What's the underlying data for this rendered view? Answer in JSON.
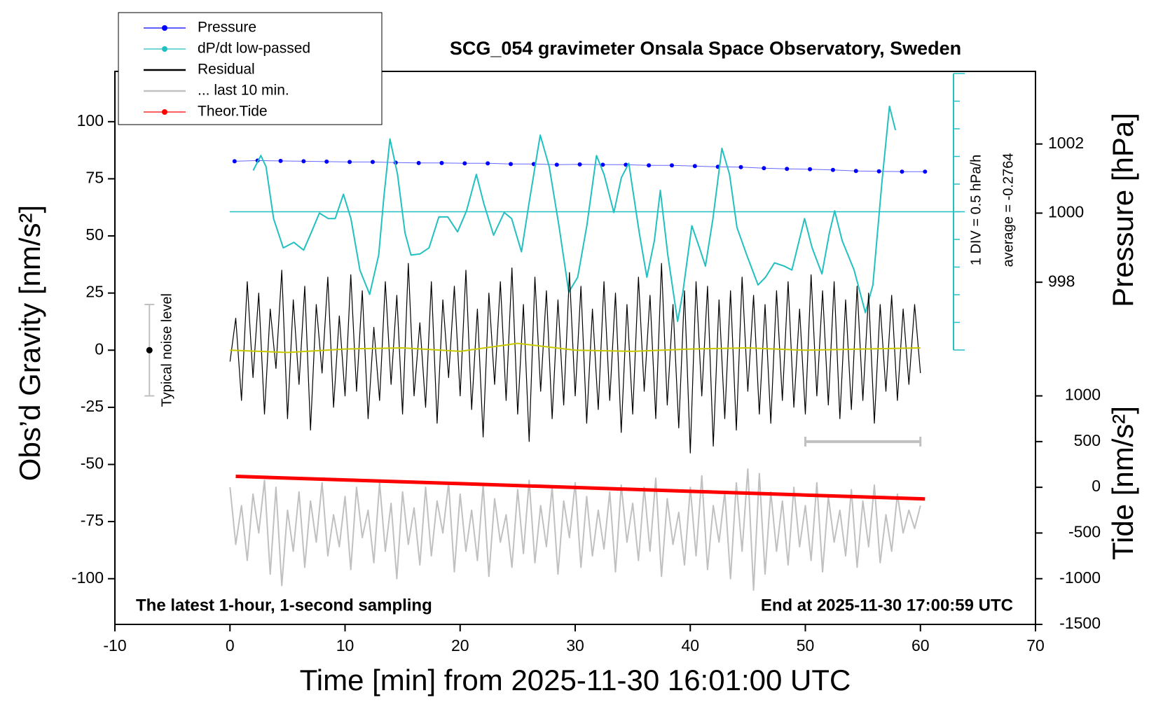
{
  "chart_data": {
    "type": "line",
    "title": "SCG_054 gravimeter Onsala Space Observatory, Sweden",
    "xlabel": "Time [min] from 2025-11-30 16:01:00 UTC",
    "ylabel": "Obs’d Gravity [nm/s²]",
    "y2label": "Pressure [hPa]",
    "y3label": "Tide [nm/s²]",
    "annotations": [
      "The latest 1-hour, 1-second sampling",
      "End at 2025-11-30 17:00:59 UTC"
    ],
    "dpdt_scale_label": "1 DIV = 0.5 hPa/h",
    "dpdt_average": -0.2764,
    "dpdt_average_label": "average = -0.2764",
    "xlim": [
      -10,
      70
    ],
    "xticks": [
      -10,
      0,
      10,
      20,
      30,
      40,
      50,
      60,
      70
    ],
    "ylim": [
      -120,
      122
    ],
    "yticks": [
      -100,
      -75,
      -50,
      -25,
      0,
      25,
      50,
      75,
      100
    ],
    "y2lim": [
      988.1,
      1004.1
    ],
    "y2ticks": [
      998,
      1000,
      1002
    ],
    "y3lim": [
      -1500,
      4550
    ],
    "y3ticks": [
      -1500,
      -1000,
      -500,
      0,
      500,
      1000
    ],
    "y4lim": [
      -2.7764,
      2.2236
    ],
    "y4ticks": [
      -2.7764,
      -2.2764,
      -1.7764,
      -1.2764,
      -0.7764,
      -0.2764,
      0.2236,
      0.7236,
      1.2236,
      1.7236,
      2.2236
    ],
    "noise_bar": {
      "x": -7,
      "center": 0,
      "half_range": 20,
      "label": "Typical noise level",
      "color": "#c0c0c0"
    },
    "last10_bar": {
      "x": [
        50,
        60
      ],
      "y": -40,
      "color": "#c0c0c0"
    },
    "x": [
      0,
      0.5,
      1,
      1.5,
      2,
      2.5,
      3,
      3.5,
      4,
      4.5,
      5,
      5.5,
      6,
      6.5,
      7,
      7.5,
      8,
      8.5,
      9,
      9.5,
      10,
      10.5,
      11,
      11.5,
      12,
      12.5,
      13,
      13.5,
      14,
      14.5,
      15,
      15.5,
      16,
      16.5,
      17,
      17.5,
      18,
      18.5,
      19,
      19.5,
      20,
      20.5,
      21,
      21.5,
      22,
      22.5,
      23,
      23.5,
      24,
      24.5,
      25,
      25.5,
      26,
      26.5,
      27,
      27.5,
      28,
      28.5,
      29,
      29.5,
      30,
      30.5,
      31,
      31.5,
      32,
      32.5,
      33,
      33.5,
      34,
      34.5,
      35,
      35.5,
      36,
      36.5,
      37,
      37.5,
      38,
      38.5,
      39,
      39.5,
      40,
      40.5,
      41,
      41.5,
      42,
      42.5,
      43,
      43.5,
      44,
      44.5,
      45,
      45.5,
      46,
      46.5,
      47,
      47.5,
      48,
      48.5,
      49,
      49.5,
      50,
      50.5,
      51,
      51.5,
      52,
      52.5,
      53,
      53.5,
      54,
      54.5,
      55,
      55.5,
      56,
      56.5,
      57,
      57.5,
      58,
      58.5,
      59,
      59.5,
      60
    ],
    "series": [
      {
        "name": "Pressure",
        "color": "#0000ff",
        "axis": "y2",
        "marker": true,
        "line_width": 1,
        "x": [
          0.4,
          2.4,
          4.4,
          6.4,
          8.4,
          10.4,
          12.4,
          14.4,
          16.4,
          18.4,
          20.4,
          22.4,
          24.4,
          26.4,
          28.4,
          30.4,
          32.4,
          34.4,
          36.4,
          38.4,
          40.4,
          42.4,
          44.4,
          46.4,
          48.4,
          50.4,
          52.4,
          54.4,
          56.4,
          58.4,
          60.4
        ],
        "values": [
          1001.5,
          1001.52,
          1001.51,
          1001.5,
          1001.49,
          1001.48,
          1001.48,
          1001.46,
          1001.45,
          1001.45,
          1001.44,
          1001.44,
          1001.42,
          1001.42,
          1001.4,
          1001.41,
          1001.4,
          1001.4,
          1001.38,
          1001.38,
          1001.36,
          1001.34,
          1001.33,
          1001.3,
          1001.28,
          1001.27,
          1001.25,
          1001.22,
          1001.21,
          1001.2,
          1001.2
        ]
      },
      {
        "name": "dP/dt low-passed",
        "color": "#22c0c0",
        "axis": "y4",
        "marker": true,
        "line_width": 2,
        "x": [
          2.02,
          2.68,
          3.13,
          3.79,
          4.63,
          5.55,
          6.4,
          7.05,
          7.77,
          8.55,
          9.14,
          9.86,
          10.51,
          11.29,
          12.14,
          12.92,
          13.38,
          13.9,
          14.56,
          15.21,
          15.73,
          16.51,
          17.3,
          18.15,
          18.93,
          19.78,
          20.56,
          21.41,
          22.06,
          22.91,
          23.83,
          24.48,
          25.33,
          25.98,
          26.96,
          27.74,
          28.59,
          29.44,
          30.22,
          31.01,
          31.85,
          32.51,
          33.36,
          34.01,
          34.66,
          35.57,
          36.23,
          36.88,
          37.4,
          38.05,
          38.9,
          39.36,
          40.14,
          40.8,
          41.32,
          41.97,
          42.75,
          43.41,
          44.06,
          44.91,
          45.89,
          46.54,
          47.32,
          48.17,
          48.83,
          49.93,
          50.59,
          51.44,
          52.09,
          52.55,
          53.2,
          54.24,
          55.22,
          55.87,
          56.66,
          57.31,
          57.83
        ],
        "values": [
          0.47,
          0.74,
          0.54,
          -0.4,
          -0.93,
          -0.83,
          -0.97,
          -0.66,
          -0.3,
          -0.4,
          -0.4,
          0.04,
          -0.4,
          -1.33,
          -1.77,
          -1.06,
          0.0,
          1.04,
          0.4,
          -0.66,
          -1.06,
          -1.04,
          -0.93,
          -0.37,
          -0.37,
          -0.64,
          -0.26,
          0.4,
          -0.13,
          -0.7,
          -0.29,
          -0.4,
          -1.0,
          -0.13,
          1.11,
          0.54,
          -0.53,
          -1.73,
          -1.46,
          -0.53,
          0.74,
          0.4,
          -0.29,
          0.34,
          0.6,
          -0.66,
          -1.46,
          -0.8,
          0.11,
          -1.06,
          -2.26,
          -1.73,
          -0.53,
          -0.93,
          -1.26,
          -0.4,
          0.87,
          0.4,
          -0.56,
          -1.06,
          -1.6,
          -1.46,
          -1.2,
          -1.26,
          -1.33,
          -0.4,
          -0.93,
          -1.4,
          -0.66,
          -0.26,
          -0.8,
          -1.33,
          -2.1,
          -1.6,
          0.27,
          1.63,
          1.2
        ]
      },
      {
        "name": "Residual",
        "color": "#000000",
        "axis": "y",
        "marker": false,
        "line_width": 1.2,
        "values": [
          -5,
          14,
          -22,
          30,
          -12,
          25,
          -28,
          18,
          -8,
          35,
          -30,
          22,
          -15,
          28,
          -35,
          20,
          -10,
          32,
          -25,
          15,
          -20,
          33,
          -18,
          26,
          -30,
          10,
          -22,
          30,
          -15,
          24,
          -28,
          38,
          -20,
          12,
          -25,
          30,
          -32,
          22,
          -12,
          28,
          -20,
          35,
          -26,
          18,
          -38,
          25,
          -15,
          30,
          -22,
          36,
          -28,
          20,
          -40,
          32,
          -18,
          26,
          -30,
          22,
          -24,
          34,
          -20,
          28,
          -32,
          18,
          -26,
          30,
          -22,
          25,
          -36,
          20,
          -28,
          32,
          -18,
          24,
          -30,
          38,
          -24,
          20,
          -34,
          26,
          -45,
          30,
          -20,
          28,
          -42,
          22,
          -30,
          26,
          -35,
          32,
          -18,
          24,
          -28,
          20,
          -32,
          26,
          -22,
          30,
          -25,
          18,
          -28,
          33,
          -20,
          26,
          -24,
          30,
          -30,
          22,
          -26,
          28,
          -22,
          25,
          -32,
          20,
          -18,
          24,
          -22,
          18,
          -15,
          20,
          -10
        ]
      },
      {
        "name": "... last 10 min.",
        "color": "#c0c0c0",
        "axis": "y",
        "marker": false,
        "line_width": 2,
        "values": [
          -60,
          -85,
          -68,
          -92,
          -63,
          -80,
          -57,
          -98,
          -60,
          -103,
          -70,
          -88,
          -62,
          -95,
          -66,
          -84,
          -58,
          -90,
          -72,
          -86,
          -64,
          -96,
          -60,
          -82,
          -70,
          -93,
          -58,
          -88,
          -67,
          -100,
          -62,
          -85,
          -69,
          -94,
          -60,
          -90,
          -66,
          -80,
          -58,
          -97,
          -63,
          -88,
          -70,
          -92,
          -59,
          -99,
          -65,
          -84,
          -72,
          -95,
          -61,
          -89,
          -57,
          -93,
          -68,
          -86,
          -60,
          -98,
          -66,
          -82,
          -58,
          -95,
          -64,
          -90,
          -70,
          -87,
          -62,
          -97,
          -59,
          -84,
          -67,
          -92,
          -60,
          -88,
          -56,
          -99,
          -65,
          -85,
          -71,
          -94,
          -60,
          -90,
          -55,
          -96,
          -68,
          -84,
          -62,
          -100,
          -58,
          -88,
          -52,
          -105,
          -54,
          -98,
          -62,
          -88,
          -66,
          -94,
          -60,
          -86,
          -68,
          -92,
          -58,
          -97,
          -64,
          -84,
          -70,
          -90,
          -61,
          -95,
          -66,
          -86,
          -59,
          -93,
          -72,
          -88,
          -63,
          -80,
          -70,
          -78,
          -68
        ]
      },
      {
        "name": "Theor.Tide",
        "color": "#ff0000",
        "axis": "y3",
        "marker": true,
        "line_width": 5,
        "x": [
          0.5,
          10,
          20,
          30,
          40,
          50,
          60.4
        ],
        "values": [
          120,
          81,
          40,
          -2,
          -44,
          -85,
          -128
        ]
      },
      {
        "color": "#c8c800",
        "axis": "y",
        "marker": false,
        "line_width": 2,
        "x": [
          0,
          5,
          10,
          15,
          20,
          25,
          30,
          35,
          40,
          45,
          50,
          55,
          60
        ],
        "values": [
          0,
          -1,
          0.5,
          1,
          -0.5,
          3,
          0,
          -0.5,
          0.5,
          1,
          0,
          0.5,
          1
        ]
      }
    ]
  }
}
